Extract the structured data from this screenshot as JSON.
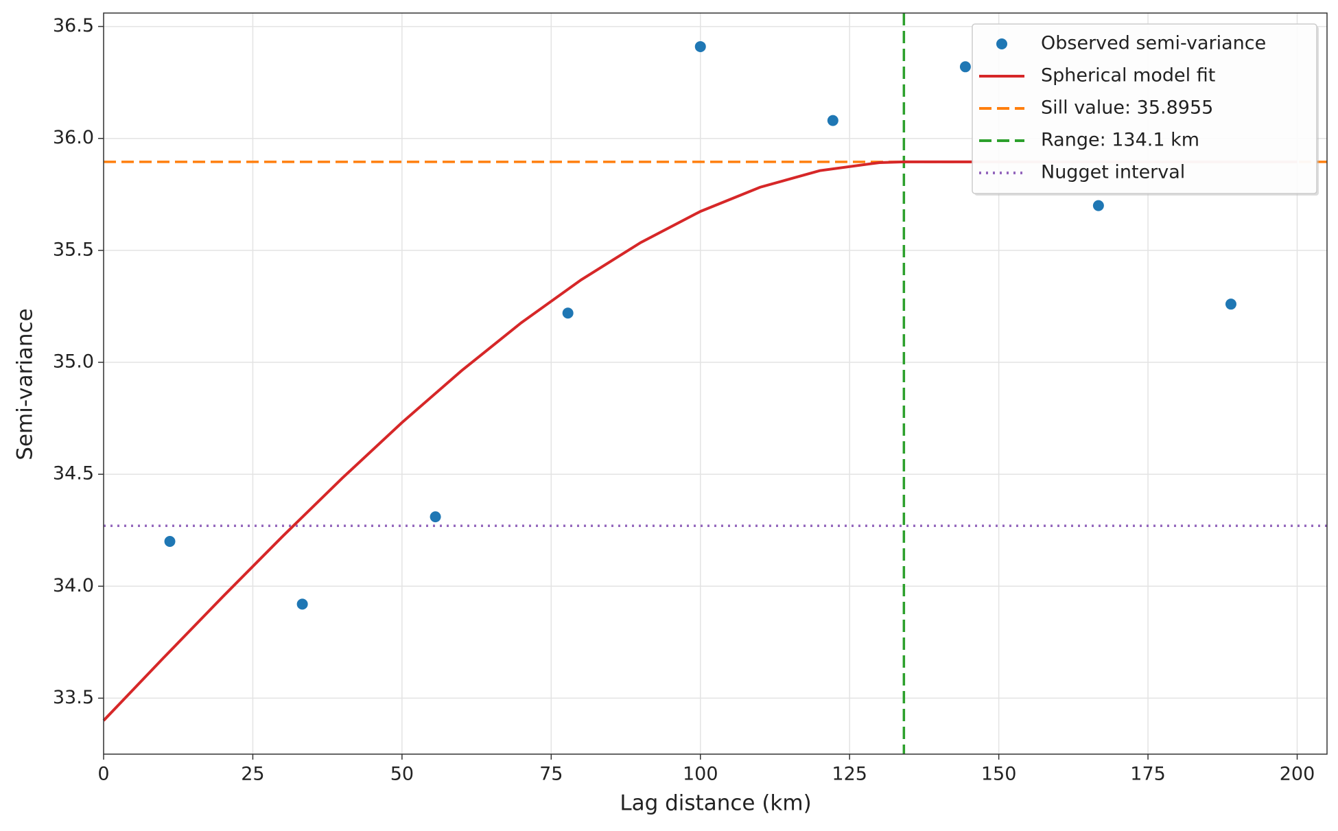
{
  "chart_data": {
    "type": "scatter",
    "xlabel": "Lag distance (km)",
    "ylabel": "Semi-variance",
    "xlim": [
      0,
      205
    ],
    "ylim": [
      33.25,
      36.56
    ],
    "xticks": [
      0,
      25,
      50,
      75,
      100,
      125,
      150,
      175,
      200
    ],
    "yticks": [
      {
        "value": 33.5,
        "label": "33.5"
      },
      {
        "value": 34,
        "label": "34.0"
      },
      {
        "value": 34.5,
        "label": "34.5"
      },
      {
        "value": 35,
        "label": "35.0"
      },
      {
        "value": 35.5,
        "label": "35.5"
      },
      {
        "value": 36,
        "label": "36.0"
      },
      {
        "value": 36.5,
        "label": "36.5"
      }
    ],
    "grid": true,
    "legend": "upper right",
    "series": [
      {
        "name": "Observed semi-variance",
        "kind": "points",
        "color": "#1f77b4",
        "x": [
          11.1,
          33.3,
          55.6,
          77.8,
          100,
          122.2,
          144.4,
          166.7,
          188.9
        ],
        "values": [
          34.2,
          33.92,
          34.31,
          35.22,
          36.41,
          36.08,
          36.32,
          35.7,
          35.26
        ]
      },
      {
        "name": "Spherical model fit",
        "kind": "line",
        "color": "#d62728",
        "x": [
          0,
          10,
          20,
          30,
          40,
          50,
          60,
          70,
          80,
          90,
          100,
          110,
          120,
          130,
          134.1,
          140,
          150,
          160,
          170,
          180,
          190,
          200
        ],
        "values": [
          33.4,
          33.679,
          33.954,
          34.223,
          34.483,
          34.731,
          34.963,
          35.177,
          35.368,
          35.535,
          35.674,
          35.782,
          35.856,
          35.892,
          35.8955,
          35.8955,
          35.8955,
          35.8955,
          35.8955,
          35.8955,
          35.8955,
          35.8955
        ]
      }
    ],
    "reference_lines": [
      {
        "name": "Sill value: 35.8955",
        "orientation": "horizontal",
        "style": "dashed",
        "color": "#ff7f0e",
        "value": 35.8955
      },
      {
        "name": "Range: 134.1 km",
        "orientation": "vertical",
        "style": "dashed",
        "color": "#2ca02c",
        "value": 134.1
      },
      {
        "name": "Nugget interval",
        "orientation": "horizontal",
        "style": "dotted",
        "color": "#9467bd",
        "value": 34.27
      }
    ]
  }
}
